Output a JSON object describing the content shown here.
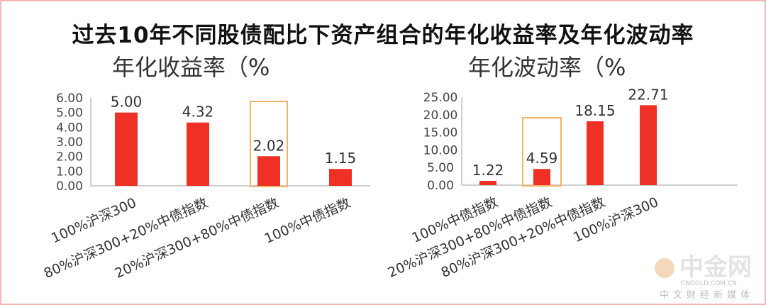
{
  "title": "过去10年不同股债配比下资产组合的年化收益率及年化波动率",
  "colors": {
    "bar": "#ee3124",
    "highlight": "#f4b266",
    "axis": "#bfbfbf",
    "border": "#f2b8b8"
  },
  "chart_data": [
    {
      "type": "bar",
      "title": "年化收益率（%",
      "categories": [
        "100%沪深300",
        "80%沪深300+20%中债指数",
        "20%沪深300+80%中债指数",
        "100%中债指数"
      ],
      "values": [
        5.0,
        4.32,
        2.02,
        1.15
      ],
      "value_labels": [
        "5.00",
        "4.32",
        "2.02",
        "1.15"
      ],
      "y_ticks": [
        "0.00",
        "1.00",
        "2.00",
        "3.00",
        "4.00",
        "5.00",
        "6.00"
      ],
      "ylim": [
        0,
        6
      ],
      "highlight_index": 2,
      "grid": false
    },
    {
      "type": "bar",
      "title": "年化波动率（%",
      "categories": [
        "100%中债指数",
        "20%沪深300+80%中债指数",
        "80%沪深300+20%中债指数",
        "100%沪深300"
      ],
      "values": [
        1.22,
        4.59,
        18.15,
        22.71
      ],
      "value_labels": [
        "1.22",
        "4.59",
        "18.15",
        "22.71"
      ],
      "y_ticks": [
        "0.00",
        "5.00",
        "10.00",
        "15.00",
        "20.00",
        "25.00"
      ],
      "ylim": [
        0,
        25
      ],
      "highlight_index": 1,
      "grid": false
    }
  ],
  "watermark": {
    "name": "中金网",
    "domain": "CNGOLD.COM.CN",
    "tagline": "中文财经新媒体",
    "icon": "coin-logo-icon"
  }
}
